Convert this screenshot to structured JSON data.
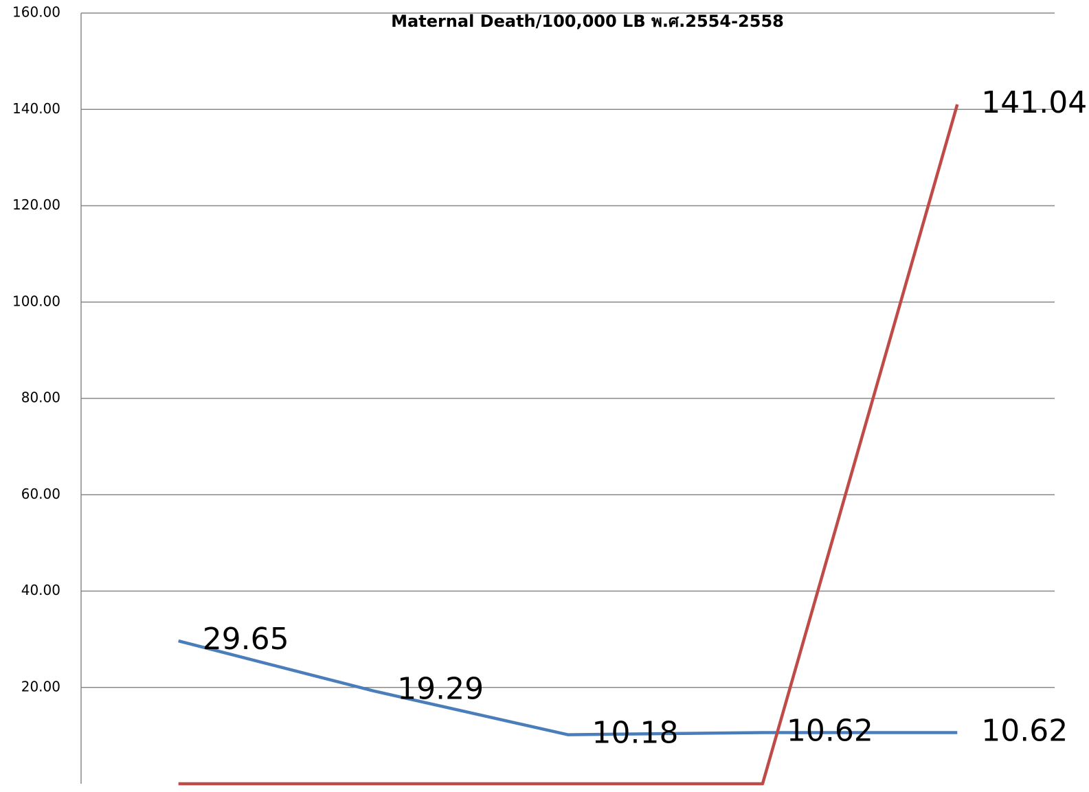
{
  "chart_data": {
    "type": "line",
    "title": "Maternal Death/100,000 LB  พ.ศ.2554-2558",
    "categories": [
      null,
      null,
      null,
      null,
      null
    ],
    "series": [
      {
        "name": null,
        "color": "#4a7ebb",
        "values": [
          29.65,
          19.29,
          10.18,
          10.62,
          10.62
        ]
      },
      {
        "name": null,
        "color": "#be4b48",
        "values": [
          0,
          0,
          0,
          0,
          141.04
        ],
        "value_labels": [
          null,
          null,
          null,
          null,
          "141.04"
        ]
      }
    ],
    "ylim": [
      0,
      160
    ],
    "yticks": [
      {
        "value": 20,
        "label": "20.00"
      },
      {
        "value": 40,
        "label": "40.00"
      },
      {
        "value": 60,
        "label": "60.00"
      },
      {
        "value": 80,
        "label": "80.00"
      },
      {
        "value": 100,
        "label": "100.00"
      },
      {
        "value": 120,
        "label": "120.00"
      },
      {
        "value": 140,
        "label": "140.00"
      },
      {
        "value": 160,
        "label": "160.00"
      }
    ],
    "grid": true
  }
}
